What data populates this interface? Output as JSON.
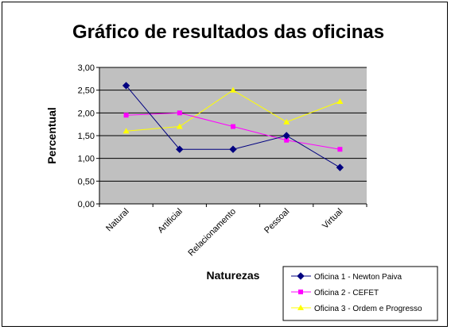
{
  "chart_data": {
    "type": "line",
    "title": "Gráfico de resultados das oficinas",
    "xlabel": "Naturezas",
    "ylabel": "Percentual",
    "categories": [
      "Natural",
      "Artificial",
      "Relacionamento",
      "Pessoal",
      "Virtual"
    ],
    "ylim": [
      0,
      3
    ],
    "yticks": [
      "0,00",
      "0,50",
      "1,00",
      "1,50",
      "2,00",
      "2,50",
      "3,00"
    ],
    "grid": true,
    "plot_background": "#c0c0c0",
    "legend_position": "bottom-right",
    "series": [
      {
        "name": "Oficina 1 - Newton Paiva",
        "values": [
          2.6,
          1.2,
          1.2,
          1.5,
          0.8
        ],
        "color": "#000080",
        "marker": "diamond"
      },
      {
        "name": "Oficina 2 - CEFET",
        "values": [
          1.95,
          2.0,
          1.7,
          1.4,
          1.2
        ],
        "color": "#ff00ff",
        "marker": "square"
      },
      {
        "name": "Oficina 3 - Ordem e Progresso",
        "values": [
          1.6,
          1.7,
          2.5,
          1.8,
          2.25
        ],
        "color": "#ffff00",
        "marker": "triangle"
      }
    ]
  }
}
